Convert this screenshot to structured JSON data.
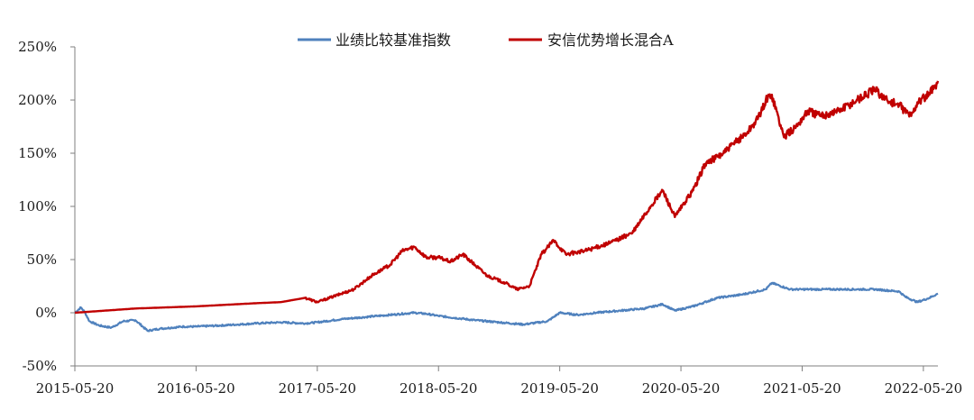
{
  "chart_data": {
    "type": "line",
    "title": "",
    "xlabel": "",
    "ylabel": "",
    "ylim": [
      -50,
      250
    ],
    "y_ticks": [
      "250%",
      "200%",
      "150%",
      "100%",
      "50%",
      "0%",
      "-50%"
    ],
    "y_tick_values": [
      250,
      200,
      150,
      100,
      50,
      0,
      -50
    ],
    "x_ticks": [
      "2015-05-20",
      "2016-05-20",
      "2017-05-20",
      "2018-05-20",
      "2019-05-20",
      "2020-05-20",
      "2021-05-20",
      "2022-05-20"
    ],
    "x_tick_years": [
      2015.0,
      2016.0,
      2017.0,
      2018.0,
      2019.0,
      2020.0,
      2021.0,
      2022.0
    ],
    "x_range_years": [
      2015.0,
      2022.12
    ],
    "legend_position": "top-center",
    "series": [
      {
        "name": "业绩比较基准指数",
        "color": "#4f81bd",
        "x": [
          2015.0,
          2015.05,
          2015.08,
          2015.12,
          2015.2,
          2015.3,
          2015.4,
          2015.5,
          2015.6,
          2015.7,
          2015.8,
          2015.9,
          2016.0,
          2016.2,
          2016.5,
          2016.7,
          2016.9,
          2017.0,
          2017.2,
          2017.5,
          2017.8,
          2017.9,
          2018.0,
          2018.3,
          2018.5,
          2018.7,
          2018.9,
          2019.0,
          2019.15,
          2019.3,
          2019.5,
          2019.7,
          2019.85,
          2019.95,
          2020.1,
          2020.3,
          2020.5,
          2020.7,
          2020.75,
          2020.9,
          2021.0,
          2021.3,
          2021.6,
          2021.8,
          2021.85,
          2021.95,
          2022.05,
          2022.12
        ],
        "values": [
          0,
          5,
          1,
          -8,
          -12,
          -14,
          -8,
          -7,
          -17,
          -15,
          -14,
          -13,
          -13,
          -12,
          -10,
          -9,
          -10,
          -9,
          -6,
          -3,
          0,
          -1,
          -3,
          -7,
          -9,
          -11,
          -8,
          0,
          -2,
          0,
          2,
          4,
          8,
          2,
          6,
          14,
          17,
          22,
          28,
          22,
          22,
          22,
          22,
          20,
          15,
          10,
          14,
          18
        ]
      },
      {
        "name": "安信优势增长混合A",
        "color": "#c00000",
        "x": [
          2015.0,
          2015.5,
          2016.0,
          2016.5,
          2016.7,
          2016.9,
          2017.0,
          2017.1,
          2017.3,
          2017.45,
          2017.6,
          2017.7,
          2017.8,
          2017.9,
          2018.0,
          2018.1,
          2018.2,
          2018.3,
          2018.4,
          2018.55,
          2018.65,
          2018.75,
          2018.85,
          2018.95,
          2019.05,
          2019.2,
          2019.4,
          2019.6,
          2019.75,
          2019.85,
          2019.95,
          2020.1,
          2020.2,
          2020.35,
          2020.45,
          2020.55,
          2020.65,
          2020.7,
          2020.75,
          2020.85,
          2020.95,
          2021.05,
          2021.15,
          2021.3,
          2021.45,
          2021.6,
          2021.65,
          2021.7,
          2021.8,
          2021.9,
          2021.95,
          2022.05,
          2022.12
        ],
        "values": [
          0,
          4,
          6,
          9,
          10,
          14,
          10,
          14,
          22,
          35,
          45,
          58,
          62,
          52,
          52,
          48,
          55,
          45,
          35,
          28,
          22,
          25,
          55,
          68,
          55,
          58,
          65,
          75,
          100,
          115,
          90,
          115,
          140,
          150,
          160,
          170,
          185,
          200,
          205,
          165,
          175,
          190,
          185,
          190,
          200,
          210,
          205,
          200,
          195,
          185,
          198,
          205,
          218
        ]
      }
    ]
  }
}
